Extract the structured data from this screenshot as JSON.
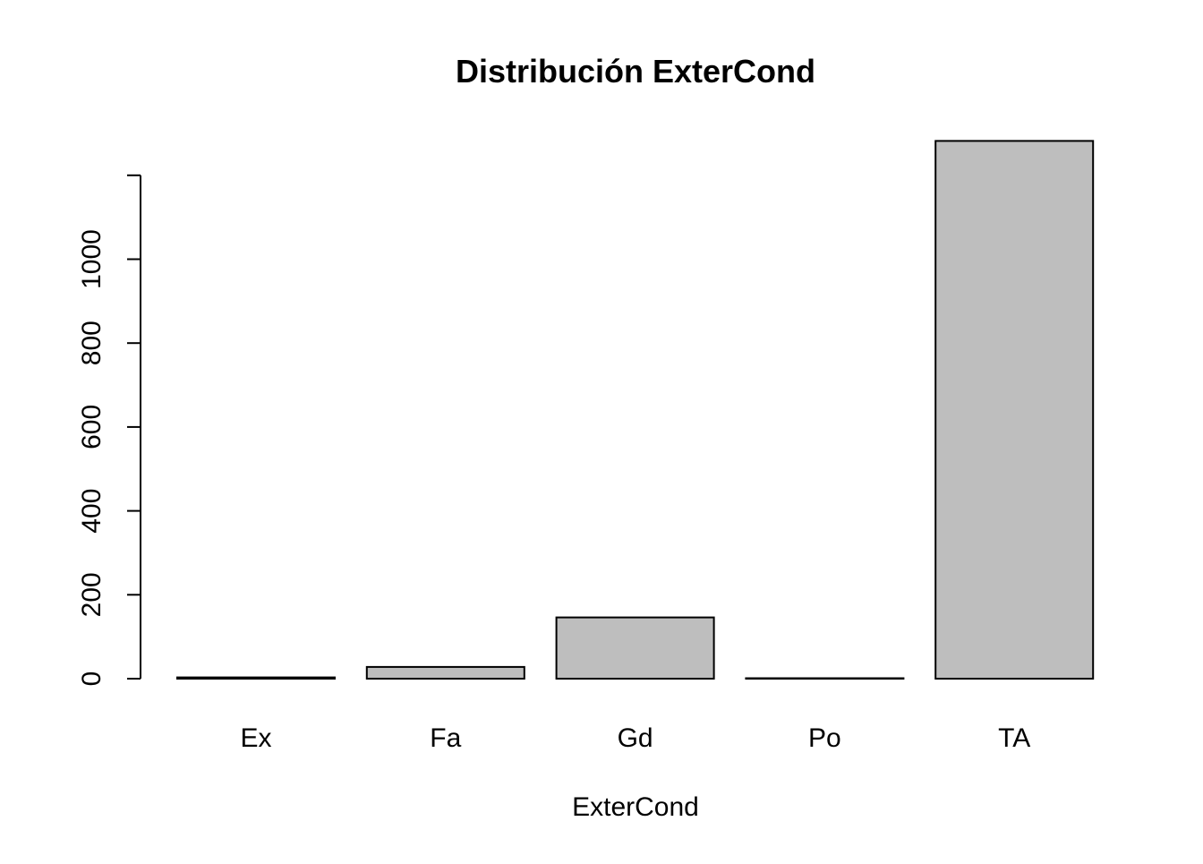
{
  "chart_data": {
    "type": "bar",
    "title": "Distribución ExterCond",
    "xlabel": "ExterCond",
    "ylabel": "",
    "categories": [
      "Ex",
      "Fa",
      "Gd",
      "Po",
      "TA"
    ],
    "values": [
      3,
      28,
      146,
      1,
      1282
    ],
    "ylim": [
      0,
      1200
    ],
    "yticks": [
      "0",
      "200",
      "400",
      "600",
      "800",
      "1000"
    ],
    "bar_color": "#bebebe",
    "grid": false,
    "legend": "none"
  }
}
